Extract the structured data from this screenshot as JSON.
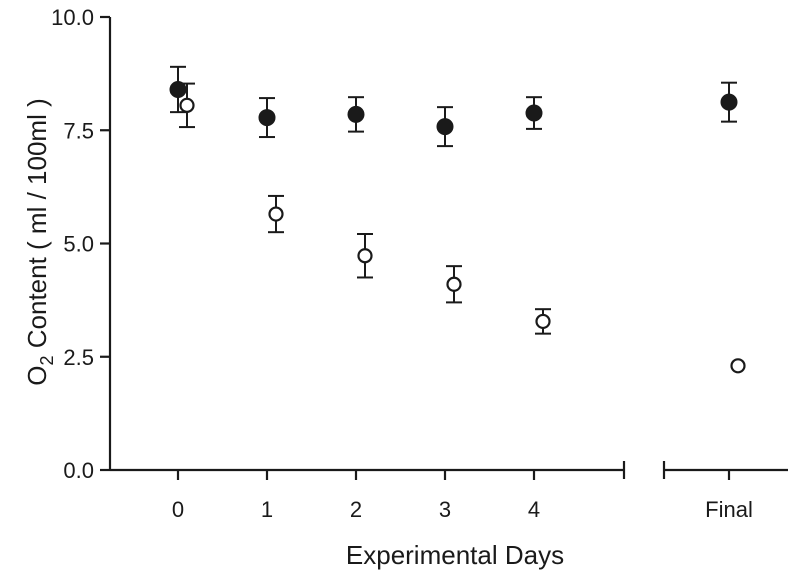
{
  "chart_data": {
    "type": "scatter",
    "xlabel": "Experimental Days",
    "ylabel_main": "O",
    "ylabel_sub": "2",
    "ylabel_rest": " Content ( ml / 100ml )",
    "ylim": [
      0,
      10
    ],
    "yticks": [
      0,
      2.5,
      5,
      7.5,
      10
    ],
    "ytick_labels": [
      "0.0",
      "2.5",
      "5.0",
      "7.5",
      "10.0"
    ],
    "categories": [
      "0",
      "1",
      "2",
      "3",
      "4",
      "Final"
    ],
    "axis_break": "between 4 and Final",
    "grid": false,
    "legend": "none",
    "series": [
      {
        "marker": "filled-circle",
        "color": "#1a1a1a",
        "points": [
          {
            "x": "0",
            "y": 8.4,
            "err": 0.5
          },
          {
            "x": "1",
            "y": 7.78,
            "err": 0.43
          },
          {
            "x": "2",
            "y": 7.85,
            "err": 0.38
          },
          {
            "x": "3",
            "y": 7.58,
            "err": 0.43
          },
          {
            "x": "4",
            "y": 7.88,
            "err": 0.35
          },
          {
            "x": "Final",
            "y": 8.12,
            "err": 0.43
          }
        ]
      },
      {
        "marker": "open-circle",
        "color": "#1a1a1a",
        "points": [
          {
            "x": "0",
            "y": 8.05,
            "err": 0.48
          },
          {
            "x": "1",
            "y": 5.65,
            "err": 0.4
          },
          {
            "x": "2",
            "y": 4.73,
            "err": 0.48
          },
          {
            "x": "3",
            "y": 4.1,
            "err": 0.4
          },
          {
            "x": "4",
            "y": 3.28,
            "err": 0.27
          },
          {
            "x": "Final",
            "y": 2.3,
            "err": 0
          }
        ]
      }
    ]
  }
}
